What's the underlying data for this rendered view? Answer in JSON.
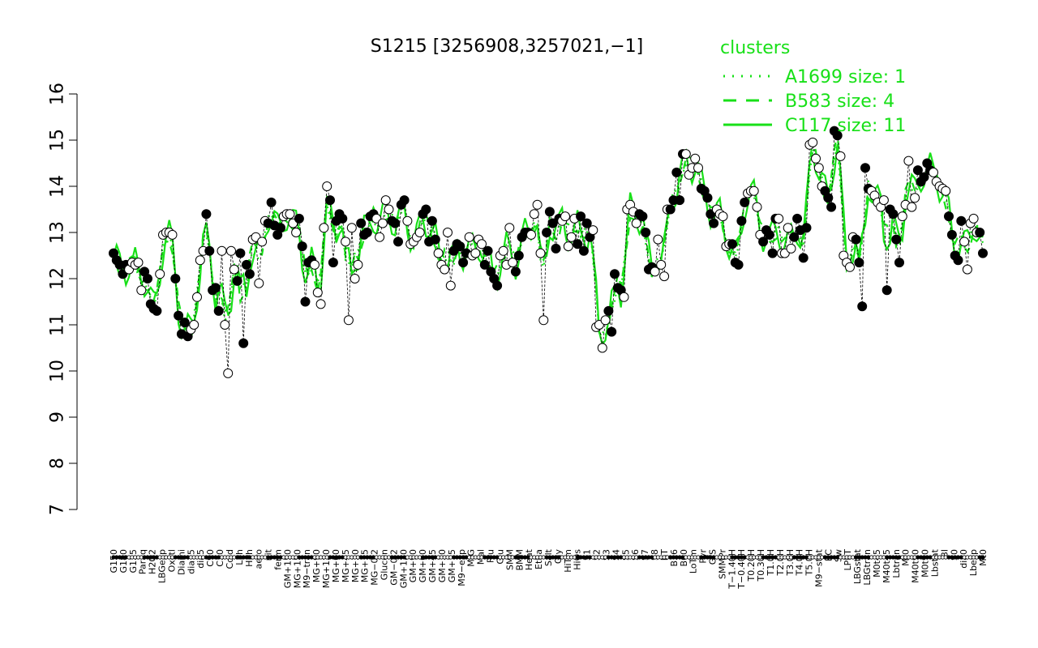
{
  "chart_data": {
    "type": "line",
    "title": "S1215 [3256908,3257021,−1]",
    "xlabel": "",
    "ylabel": "",
    "ylim": [
      7,
      16
    ],
    "yticks": [
      7,
      8,
      9,
      10,
      11,
      12,
      13,
      14,
      15,
      16
    ],
    "x_tick_labels": [
      "G150",
      "G180",
      "G135",
      "Paraq",
      "H2O2",
      "LBGexp",
      "Oxctl",
      "Diami",
      "dia15",
      "dia5",
      "C90",
      "C30",
      "Cold",
      "LPh",
      "HPh",
      "aero",
      "nit",
      "ferm",
      "GM+150",
      "MG+150",
      "M9−tran",
      "MG+90",
      "MG+120",
      "MG+60",
      "MG+45",
      "MG+30",
      "MG+15",
      "MG−0.2",
      "Glucon",
      "GM−0.2",
      "GM+120",
      "GM+90",
      "GM+60",
      "GM+45",
      "GM+30",
      "GM+15",
      "M9−exp",
      "M/G",
      "Mal",
      "Fru",
      "Glu",
      "SMM",
      "BMM",
      "Heat",
      "Etha",
      "Salt",
      "Gly",
      "HiTm",
      "HiOs",
      "S1",
      "S2",
      "S3",
      "S4",
      "S5",
      "S6",
      "S7",
      "S8",
      "BT",
      "B36",
      "B60",
      "LoTm",
      "Pyr",
      "G/S",
      "SMMPr",
      "T−1.40H",
      "T−0.40H",
      "T0.20H",
      "T0.30H",
      "T1.0H",
      "T2.0H",
      "T3.0H",
      "T4.0H",
      "T5.0H",
      "M9−stat",
      "BC",
      "Sw",
      "LPhT",
      "LBGstat",
      "LBGtran",
      "M0t45",
      "M40t45",
      "Lbtran",
      "Mt0",
      "M40t90",
      "M0t90",
      "Lbstat",
      "BI",
      "S0",
      "dia0",
      "Lbexp",
      "Mt0"
    ],
    "series": [
      {
        "name": "A1699 size: 1",
        "style": "dotted"
      },
      {
        "name": "B583 size: 4",
        "style": "dashed"
      },
      {
        "name": "C117 size: 11",
        "style": "solid"
      }
    ],
    "point_series": [
      12.55,
      12.4,
      12.3,
      12.1,
      12.3,
      12.2,
      12.35,
      12.3,
      12.35,
      11.75,
      12.15,
      12.0,
      11.45,
      11.35,
      11.3,
      12.1,
      12.95,
      13.0,
      13.0,
      12.95,
      12.0,
      11.2,
      10.8,
      11.05,
      10.75,
      10.9,
      11.0,
      11.6,
      12.4,
      12.6,
      13.4,
      12.6,
      11.75,
      11.8,
      11.3,
      12.6,
      11.0,
      9.95,
      12.6,
      12.2,
      11.95,
      12.55,
      10.6,
      12.3,
      12.1,
      12.85,
      12.9,
      11.9,
      12.8,
      13.25,
      13.2,
      13.65,
      13.15,
      12.95,
      13.1,
      13.35,
      13.4,
      13.4,
      13.2,
      13.0,
      13.3,
      12.7,
      11.5,
      12.35,
      12.4,
      12.3,
      11.7,
      11.45,
      13.1,
      14.0,
      13.7,
      12.35,
      13.25,
      13.4,
      13.3,
      12.8,
      11.1,
      13.1,
      12.0,
      12.3,
      13.2,
      12.95,
      13.0,
      13.35,
      13.4,
      13.3,
      12.9,
      13.2,
      13.7,
      13.5,
      13.25,
      13.2,
      12.8,
      13.6,
      13.7,
      13.25,
      12.75,
      12.8,
      12.9,
      13.0,
      13.4,
      13.5,
      12.8,
      13.25,
      12.85,
      12.55,
      12.3,
      12.2,
      13.0,
      11.85,
      12.6,
      12.75,
      12.7,
      12.35,
      12.55,
      12.9,
      12.5,
      12.55,
      12.85,
      12.75,
      12.3,
      12.6,
      12.15,
      12.0,
      11.85,
      12.5,
      12.6,
      12.3,
      13.1,
      12.35,
      12.15,
      12.5,
      12.9,
      13.0,
      13.0,
      12.95,
      13.4,
      13.6,
      12.55,
      11.1,
      13.0,
      13.45,
      13.2,
      12.65,
      13.3,
      13.25,
      13.35,
      12.7,
      12.9,
      13.3,
      12.75,
      13.35,
      12.6,
      13.2,
      12.9,
      13.05,
      10.95,
      11.0,
      10.5,
      11.1,
      11.3,
      10.85,
      12.1,
      11.8,
      11.75,
      11.6,
      13.5,
      13.6,
      13.45,
      13.2,
      13.4,
      13.35,
      13.0,
      12.2,
      12.25,
      12.15,
      12.85,
      12.3,
      12.05,
      13.5,
      13.5,
      13.7,
      14.3,
      13.7,
      14.7,
      14.7,
      14.25,
      14.4,
      14.6,
      14.4,
      13.95,
      13.9,
      13.75,
      13.4,
      13.2,
      13.5,
      13.4,
      13.35,
      12.7,
      12.75,
      12.75,
      12.35,
      12.3,
      13.25,
      13.65,
      13.85,
      13.9,
      13.9,
      13.55,
      12.95,
      12.8,
      13.05,
      12.95,
      12.55,
      13.3,
      13.3,
      12.55,
      12.55,
      13.1,
      12.65,
      12.9,
      13.3,
      13.05,
      12.45,
      13.1,
      14.9,
      14.95,
      14.6,
      14.4,
      14.0,
      13.9,
      13.75,
      13.55,
      15.2,
      15.1,
      14.65,
      12.5,
      12.35,
      12.25,
      12.9,
      12.85,
      12.35,
      11.4,
      14.4,
      13.95,
      13.9,
      13.8,
      13.65,
      13.55,
      13.7,
      11.75,
      13.5,
      13.4,
      12.85,
      12.35,
      13.35,
      13.6,
      14.55,
      13.55,
      13.75,
      14.35,
      14.1,
      14.2,
      14.5,
      14.35,
      14.3,
      14.1,
      14.0,
      13.95,
      13.9,
      13.35,
      12.95,
      12.5,
      12.4,
      13.25,
      12.8,
      12.2,
      13.2,
      13.3,
      13.0,
      13.0,
      12.55
    ],
    "grid": false,
    "legend_title": "clusters",
    "legend_position": "top-right"
  }
}
